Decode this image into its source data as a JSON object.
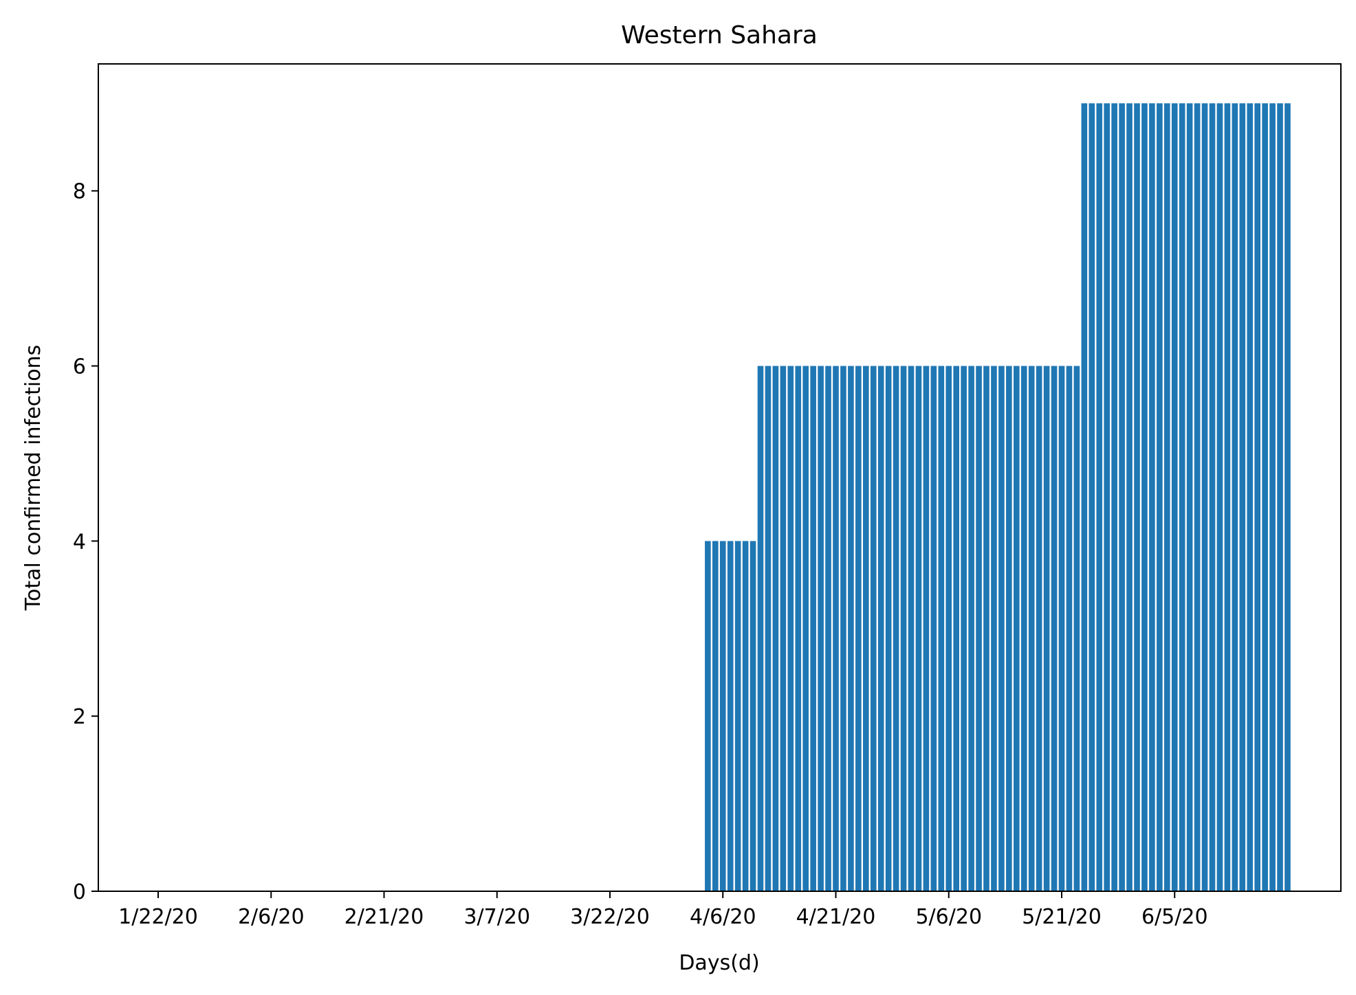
{
  "chart_data": {
    "type": "bar",
    "title": "Western Sahara",
    "xlabel": "Days(d)",
    "ylabel": "Total confirmed infections",
    "x_start": "1/22/20",
    "series_segments": [
      {
        "from": "1/22/20",
        "to": "4/3/20",
        "value": 0
      },
      {
        "from": "4/4/20",
        "to": "4/10/20",
        "value": 4
      },
      {
        "from": "4/11/20",
        "to": "5/23/20",
        "value": 6
      },
      {
        "from": "5/24/20",
        "to": "6/20/20",
        "value": 9
      }
    ],
    "x_tick_labels": [
      "1/22/20",
      "2/6/20",
      "2/21/20",
      "3/7/20",
      "3/22/20",
      "4/6/20",
      "4/21/20",
      "5/6/20",
      "5/21/20",
      "6/5/20"
    ],
    "y_ticks": [
      0,
      2,
      4,
      6,
      8
    ],
    "ylim": [
      0,
      9.45
    ],
    "grid": false,
    "bar_color": "#1f77b4"
  }
}
